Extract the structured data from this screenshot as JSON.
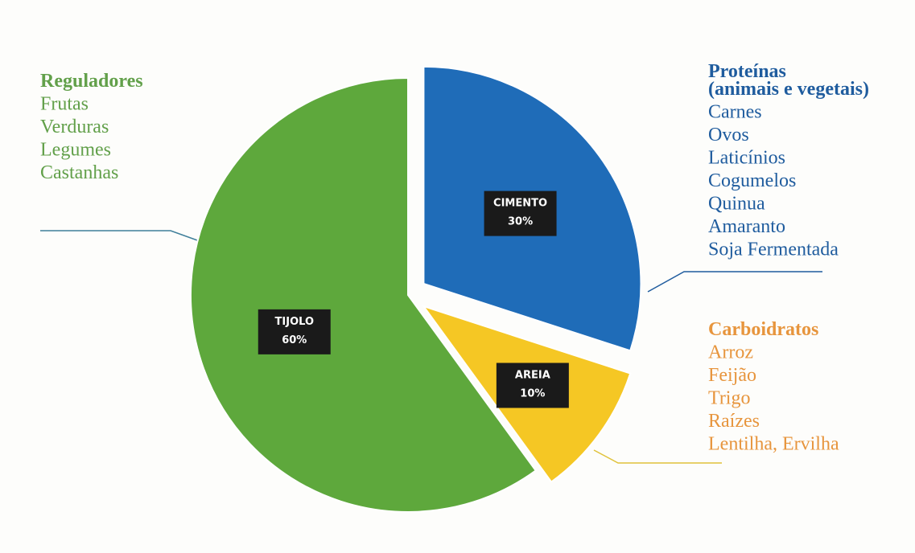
{
  "chart_data": {
    "type": "pie",
    "categories": [
      "CIMENTO",
      "AREIA",
      "TIJOLO"
    ],
    "values": [
      30,
      10,
      60
    ],
    "value_labels": [
      "30%",
      "10%",
      "60%"
    ],
    "colors": [
      "#1f6cb8",
      "#f5c724",
      "#5ea83c"
    ],
    "annotations": [
      {
        "title": "Reguladores",
        "items": [
          "Frutas",
          "Verduras",
          "Legumes",
          "Castanhas"
        ],
        "color": "#62a04a"
      },
      {
        "title": "Proteínas",
        "subtitle": "(animais e vegetais)",
        "items": [
          "Carnes",
          "Ovos",
          "Laticínios",
          "Cogumelos",
          "Quinua",
          "Amaranto",
          "Soja Fermentada"
        ],
        "color": "#1f5c9e"
      },
      {
        "title": "Carboidratos",
        "items": [
          "Arroz",
          "Feijão",
          "Trigo",
          "Raízes",
          "Lentilha, Ervilha"
        ],
        "color": "#e7953d"
      }
    ]
  }
}
